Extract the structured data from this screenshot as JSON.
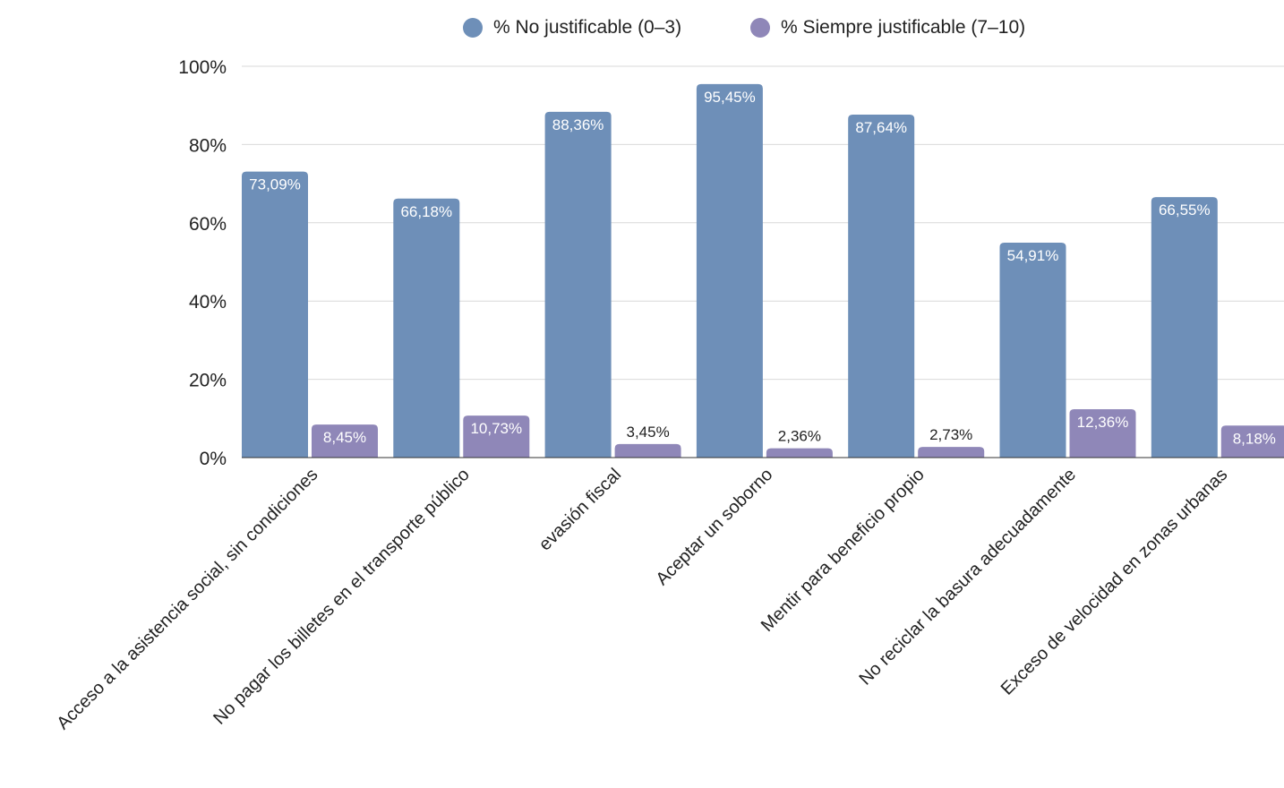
{
  "chart_data": {
    "type": "bar",
    "categories": [
      "Acceso a la asistencia social, sin condiciones",
      "No pagar los billetes en el transporte público",
      "evasión fiscal",
      "Aceptar un soborno",
      "Mentir para beneficio propio",
      "No reciclar la basura adecuadamente",
      "Exceso de velocidad en zonas urbanas"
    ],
    "series": [
      {
        "name": "% No justificable (0–3)",
        "color": "#6e8fb8",
        "values": [
          73.09,
          66.18,
          88.36,
          95.45,
          87.64,
          54.91,
          66.55
        ],
        "labels": [
          "73,09%",
          "66,18%",
          "88,36%",
          "95,45%",
          "87,64%",
          "54,91%",
          "66,55%"
        ]
      },
      {
        "name": "% Siempre justificable (7–10)",
        "color": "#8f87b8",
        "values": [
          8.45,
          10.73,
          3.45,
          2.36,
          2.73,
          12.36,
          8.18
        ],
        "labels": [
          "8,45%",
          "10,73%",
          "3,45%",
          "2,36%",
          "2,73%",
          "12,36%",
          "8,18%"
        ]
      }
    ],
    "yticks": [
      "0%",
      "20%",
      "40%",
      "60%",
      "80%",
      "100%"
    ],
    "ylim": [
      0,
      100
    ],
    "grid": true,
    "legend": "top-center"
  }
}
